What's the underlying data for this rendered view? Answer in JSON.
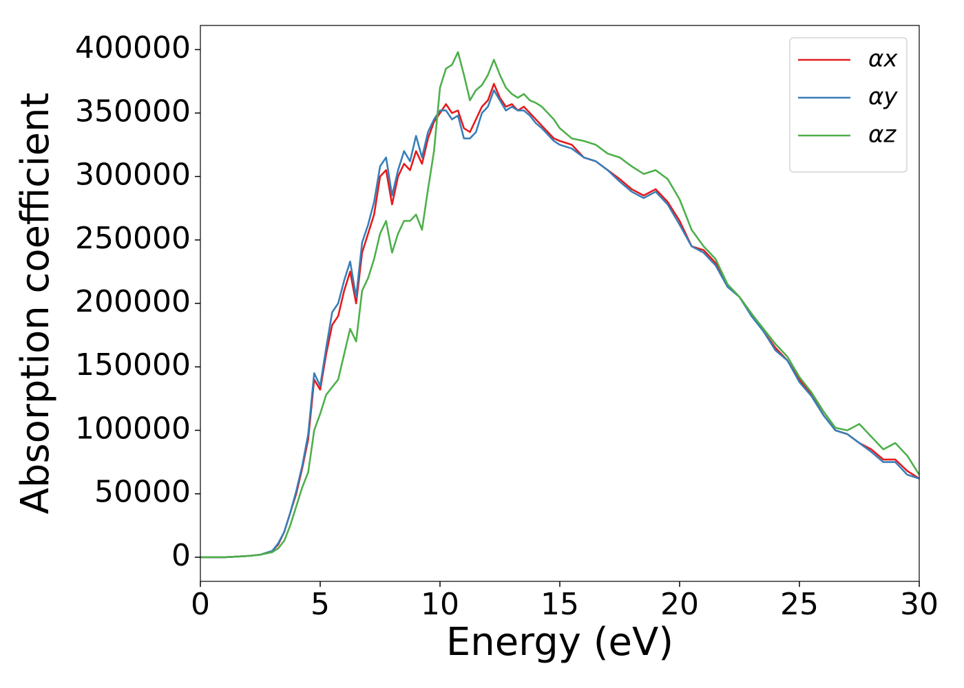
{
  "chart_data": {
    "type": "line",
    "xlabel": "Energy (eV)",
    "ylabel": "Absorption coefficient",
    "x": [
      0,
      0.5,
      1,
      1.5,
      2,
      2.5,
      3,
      3.25,
      3.5,
      3.75,
      4,
      4.25,
      4.5,
      4.75,
      5,
      5.25,
      5.5,
      5.75,
      6,
      6.25,
      6.5,
      6.75,
      7,
      7.25,
      7.5,
      7.75,
      8,
      8.25,
      8.5,
      8.75,
      9,
      9.25,
      9.5,
      9.75,
      10,
      10.25,
      10.5,
      10.75,
      11,
      11.25,
      11.5,
      11.75,
      12,
      12.25,
      12.5,
      12.75,
      13,
      13.25,
      13.5,
      13.75,
      14,
      14.25,
      14.5,
      14.75,
      15,
      15.5,
      16,
      16.5,
      17,
      17.5,
      18,
      18.5,
      19,
      19.5,
      20,
      20.5,
      21,
      21.5,
      22,
      22.5,
      23,
      23.5,
      24,
      24.5,
      25,
      25.5,
      26,
      26.5,
      27,
      27.5,
      28,
      28.5,
      29,
      29.5,
      30
    ],
    "series": [
      {
        "name": "αx",
        "color": "#e41a1c",
        "values": [
          0,
          0,
          0,
          500,
          1000,
          2000,
          5000,
          10000,
          20000,
          35000,
          50000,
          70000,
          93000,
          140000,
          132000,
          160000,
          183000,
          190000,
          210000,
          225000,
          200000,
          240000,
          255000,
          270000,
          300000,
          305000,
          278000,
          300000,
          310000,
          305000,
          320000,
          310000,
          330000,
          343000,
          350000,
          357000,
          350000,
          352000,
          338000,
          335000,
          345000,
          355000,
          360000,
          373000,
          362000,
          355000,
          357000,
          352000,
          355000,
          350000,
          345000,
          340000,
          335000,
          330000,
          328000,
          325000,
          315000,
          312000,
          305000,
          298000,
          290000,
          285000,
          290000,
          280000,
          265000,
          245000,
          242000,
          232000,
          215000,
          205000,
          192000,
          178000,
          165000,
          155000,
          140000,
          128000,
          112000,
          100000,
          97000,
          90000,
          85000,
          77000,
          77000,
          68000,
          62000
        ]
      },
      {
        "name": "αy",
        "color": "#377eb8",
        "values": [
          0,
          0,
          0,
          500,
          1000,
          2000,
          5000,
          11000,
          20000,
          35000,
          52000,
          72000,
          97000,
          145000,
          135000,
          165000,
          193000,
          200000,
          218000,
          233000,
          205000,
          248000,
          262000,
          280000,
          308000,
          315000,
          285000,
          305000,
          320000,
          312000,
          332000,
          315000,
          335000,
          345000,
          352000,
          352000,
          345000,
          348000,
          330000,
          330000,
          335000,
          350000,
          355000,
          368000,
          360000,
          352000,
          355000,
          352000,
          352000,
          348000,
          342000,
          338000,
          333000,
          328000,
          325000,
          322000,
          315000,
          312000,
          305000,
          296000,
          288000,
          283000,
          288000,
          278000,
          262000,
          245000,
          240000,
          230000,
          213000,
          205000,
          190000,
          178000,
          163000,
          155000,
          138000,
          127000,
          112000,
          100000,
          97000,
          90000,
          83000,
          75000,
          75000,
          65000,
          62000
        ]
      },
      {
        "name": "αz",
        "color": "#4daf4a",
        "values": [
          0,
          0,
          0,
          500,
          1000,
          2000,
          4000,
          7000,
          13000,
          25000,
          40000,
          55000,
          67000,
          100000,
          113000,
          128000,
          134000,
          140000,
          160000,
          180000,
          170000,
          210000,
          220000,
          235000,
          255000,
          265000,
          240000,
          255000,
          265000,
          265000,
          270000,
          258000,
          290000,
          320000,
          370000,
          385000,
          388000,
          398000,
          380000,
          360000,
          368000,
          372000,
          380000,
          392000,
          380000,
          370000,
          365000,
          362000,
          365000,
          360000,
          358000,
          355000,
          350000,
          345000,
          338000,
          330000,
          328000,
          325000,
          318000,
          315000,
          308000,
          302000,
          305000,
          298000,
          282000,
          258000,
          245000,
          235000,
          215000,
          205000,
          192000,
          180000,
          168000,
          158000,
          142000,
          130000,
          115000,
          102000,
          100000,
          105000,
          95000,
          85000,
          90000,
          80000,
          65000
        ]
      }
    ],
    "xlim": [
      0,
      30
    ],
    "ylim": [
      -19000,
      419000
    ],
    "xticks": [
      0,
      5,
      10,
      15,
      20,
      25,
      30
    ],
    "yticks": [
      0,
      50000,
      100000,
      150000,
      200000,
      250000,
      300000,
      350000,
      400000
    ],
    "legend": "upper right"
  }
}
